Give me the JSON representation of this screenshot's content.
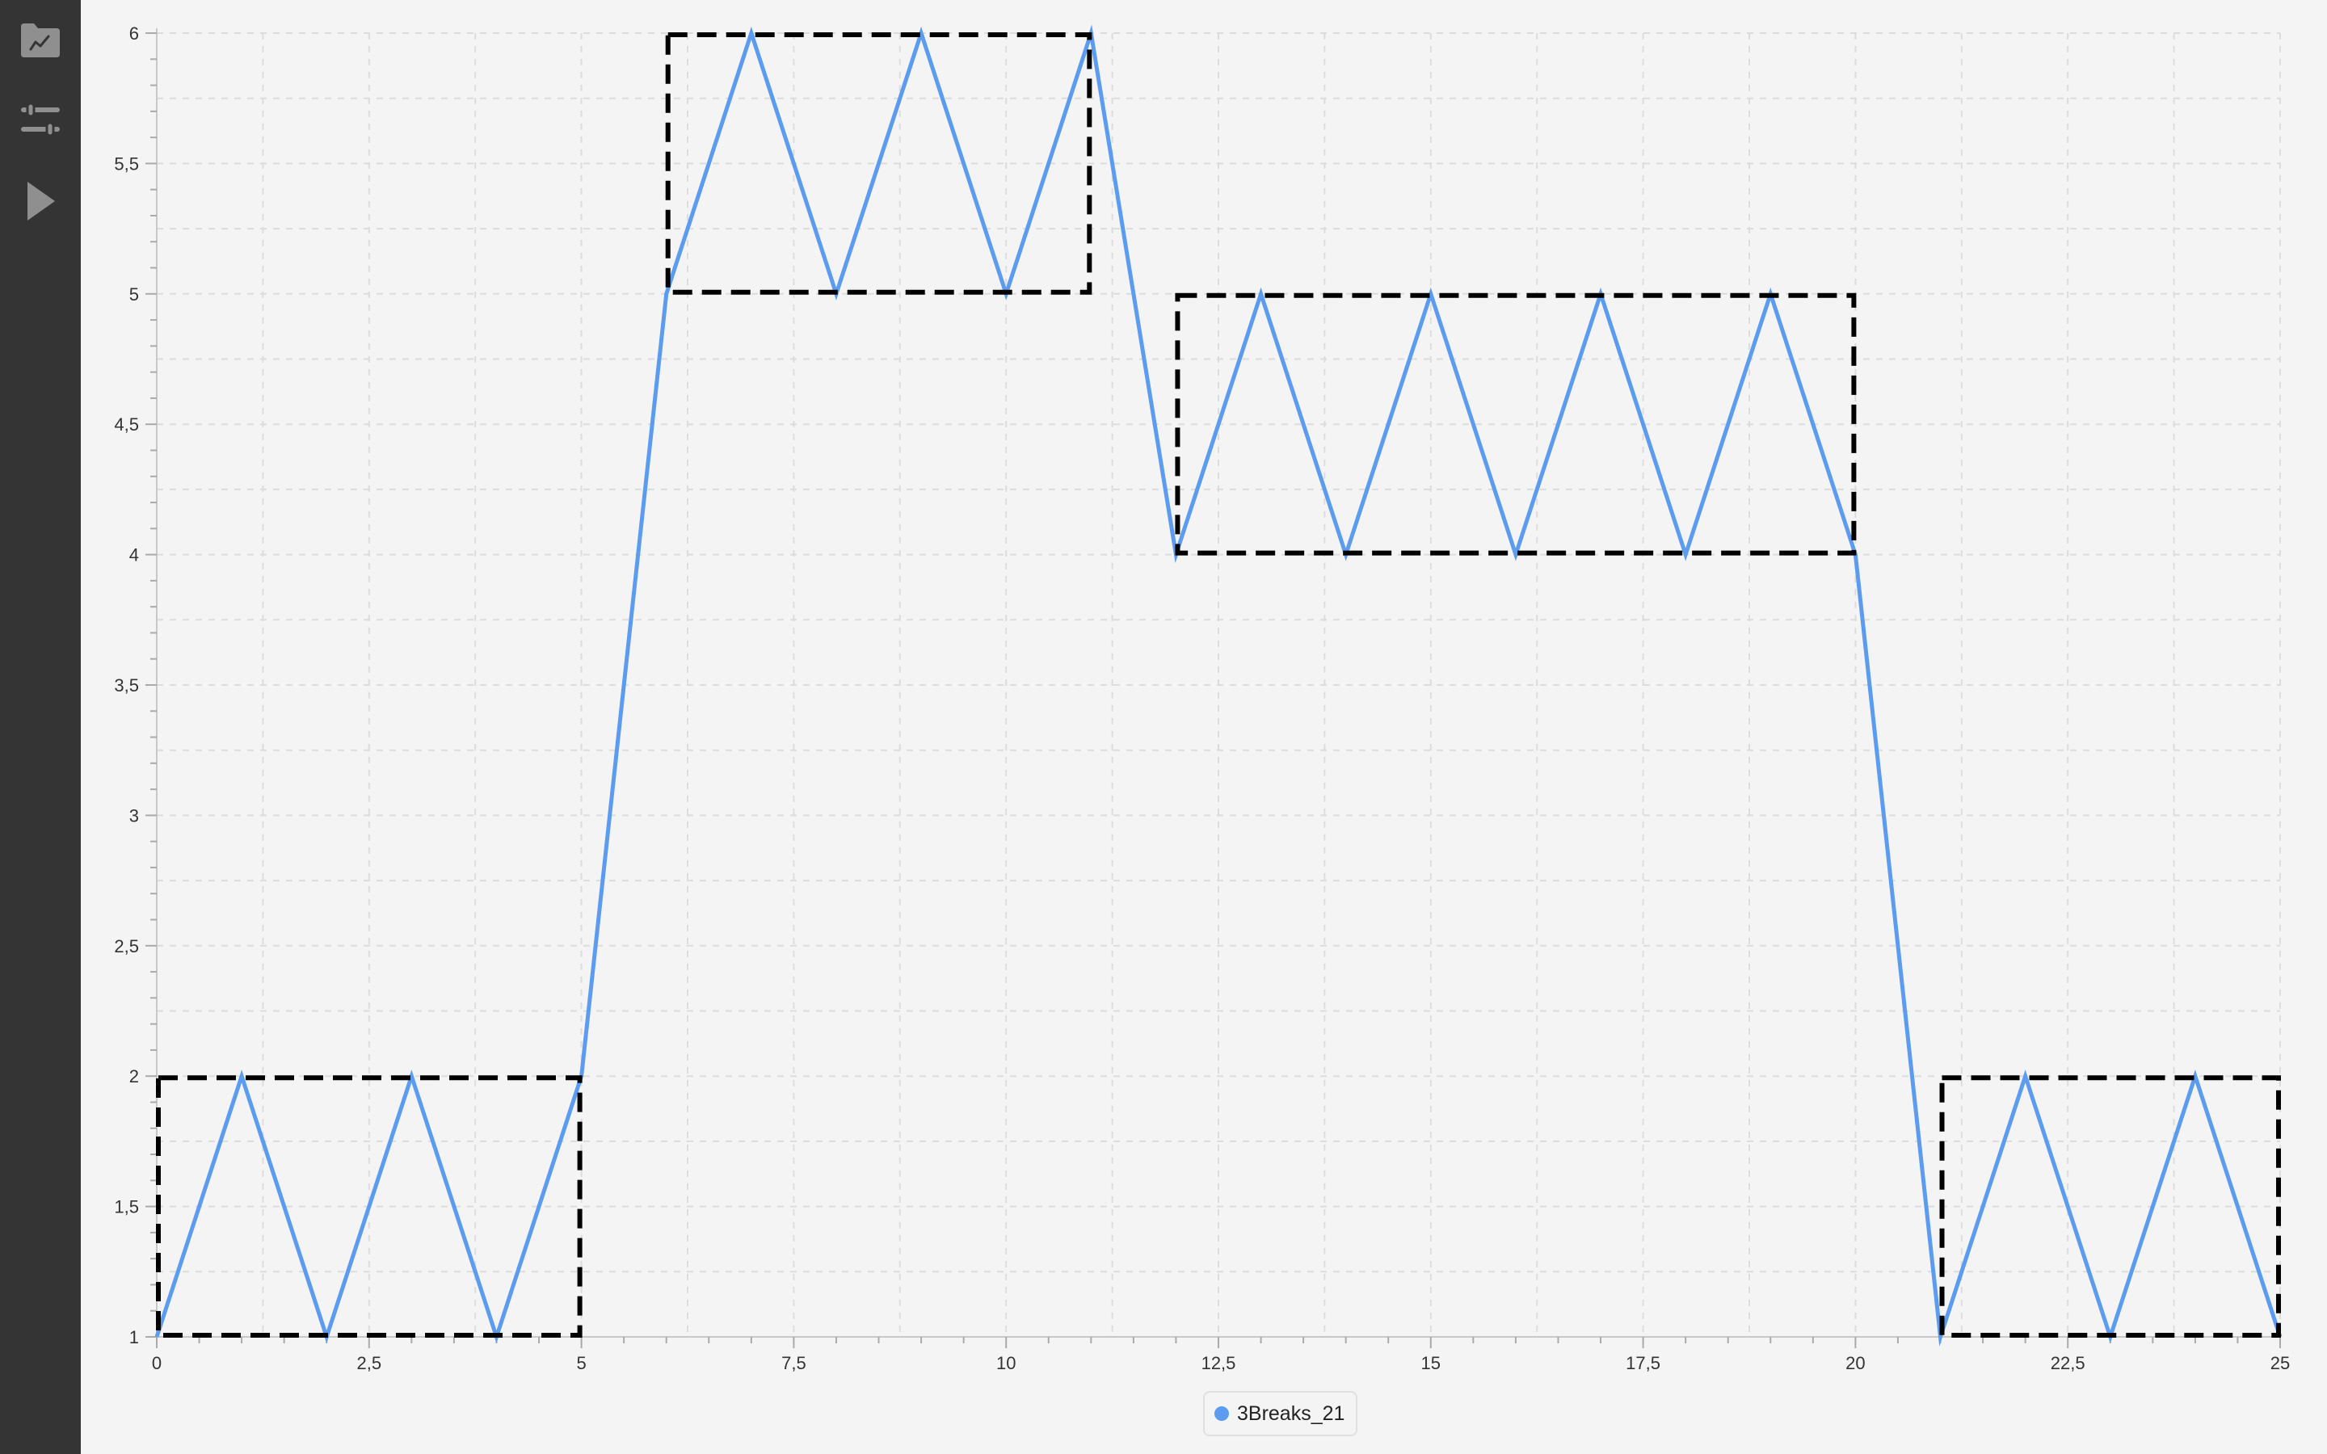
{
  "sidebar": {
    "buttons": [
      {
        "name": "chart-folder",
        "icon": "chart-folder-icon"
      },
      {
        "name": "settings",
        "icon": "sliders-icon"
      },
      {
        "name": "run",
        "icon": "play-icon"
      }
    ],
    "icon_color": "#8f8f8f",
    "background": "#343434"
  },
  "colors": {
    "series": "#5b9bf0",
    "boxes": "#000000",
    "grid": "#dcdcdc",
    "axis": "#c8c8c8",
    "tick_text": "#333333"
  },
  "chart_data": {
    "type": "line",
    "title": "",
    "xlabel": "",
    "ylabel": "",
    "xlim": [
      0,
      25
    ],
    "ylim": [
      1,
      6
    ],
    "x_ticks": [
      "0",
      "2,5",
      "5",
      "7,5",
      "10",
      "12,5",
      "15",
      "17,5",
      "20",
      "22,5",
      "25"
    ],
    "x_tick_values": [
      0,
      2.5,
      5,
      7.5,
      10,
      12.5,
      15,
      17.5,
      20,
      22.5,
      25
    ],
    "y_ticks": [
      "1",
      "1,5",
      "2",
      "2,5",
      "3",
      "3,5",
      "4",
      "4,5",
      "5",
      "5,5",
      "6"
    ],
    "y_tick_values": [
      1,
      1.5,
      2,
      2.5,
      3,
      3.5,
      4,
      4.5,
      5,
      5.5,
      6
    ],
    "grid": true,
    "legend_position": "bottom-center",
    "series": [
      {
        "name": "3Breaks_21",
        "x": [
          0,
          1,
          2,
          3,
          4,
          5,
          6,
          7,
          8,
          9,
          10,
          11,
          12,
          13,
          14,
          15,
          16,
          17,
          18,
          19,
          20,
          21,
          22,
          23,
          24,
          25
        ],
        "values": [
          1,
          2,
          1,
          2,
          1,
          2,
          5,
          6,
          5,
          6,
          5,
          6,
          4,
          5,
          4,
          5,
          4,
          5,
          4,
          5,
          4,
          1,
          2,
          1,
          2,
          1
        ]
      }
    ],
    "annotations": [
      {
        "type": "dashed-box",
        "x_range": [
          0,
          5
        ],
        "y_range": [
          1,
          2
        ]
      },
      {
        "type": "dashed-box",
        "x_range": [
          6,
          11
        ],
        "y_range": [
          5,
          6
        ]
      },
      {
        "type": "dashed-box",
        "x_range": [
          12,
          20
        ],
        "y_range": [
          4,
          5
        ]
      },
      {
        "type": "dashed-box",
        "x_range": [
          21,
          25
        ],
        "y_range": [
          1,
          2
        ]
      }
    ]
  }
}
